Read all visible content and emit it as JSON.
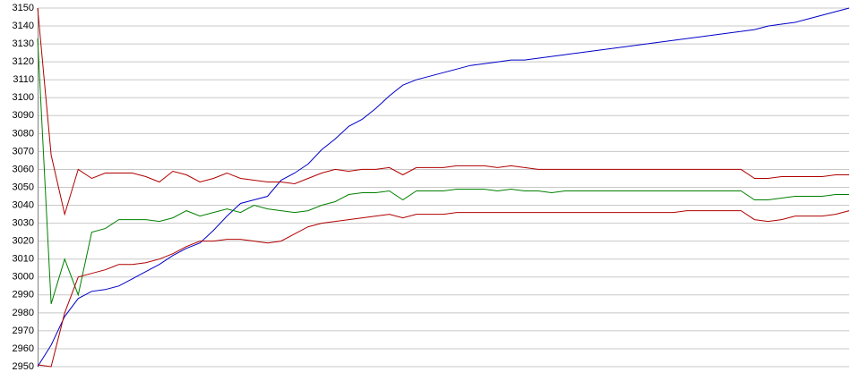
{
  "chart_data": {
    "type": "line",
    "ylim": [
      2950,
      3150
    ],
    "yticks": [
      2950,
      2960,
      2970,
      2980,
      2990,
      3000,
      3010,
      3020,
      3030,
      3040,
      3050,
      3060,
      3070,
      3080,
      3090,
      3100,
      3110,
      3120,
      3130,
      3140,
      3150
    ],
    "grid": true,
    "series": [
      {
        "color": "#0000c8",
        "values": [
          2950,
          2962,
          2978,
          2988,
          2992,
          2993,
          2995,
          2999,
          3003,
          3007,
          3012,
          3016,
          3019,
          3026,
          3034,
          3041,
          3043,
          3045,
          3054,
          3058,
          3063,
          3071,
          3077,
          3084,
          3088,
          3094,
          3101,
          3107,
          3110,
          3112,
          3114,
          3116,
          3118,
          3119,
          3120,
          3121,
          3121,
          3122,
          3123,
          3124,
          3125,
          3126,
          3127,
          3128,
          3129,
          3130,
          3131,
          3132,
          3133,
          3134,
          3135,
          3136,
          3137,
          3138,
          3140,
          3141,
          3142,
          3144,
          3146,
          3148,
          3150
        ]
      },
      {
        "color": "#b00000",
        "values": [
          3150,
          3068,
          3035,
          3060,
          3055,
          3058,
          3058,
          3058,
          3056,
          3053,
          3059,
          3057,
          3053,
          3055,
          3058,
          3055,
          3054,
          3053,
          3053,
          3052,
          3055,
          3058,
          3060,
          3059,
          3060,
          3060,
          3061,
          3057,
          3061,
          3061,
          3061,
          3062,
          3062,
          3062,
          3061,
          3062,
          3061,
          3060,
          3060,
          3060,
          3060,
          3060,
          3060,
          3060,
          3060,
          3060,
          3060,
          3060,
          3060,
          3060,
          3060,
          3060,
          3060,
          3055,
          3055,
          3056,
          3056,
          3056,
          3056,
          3057,
          3057
        ]
      },
      {
        "color": "#008000",
        "values": [
          3133,
          2985,
          3010,
          2990,
          3025,
          3027,
          3032,
          3032,
          3032,
          3031,
          3033,
          3037,
          3034,
          3036,
          3038,
          3036,
          3040,
          3038,
          3037,
          3036,
          3037,
          3040,
          3042,
          3046,
          3047,
          3047,
          3048,
          3043,
          3048,
          3048,
          3048,
          3049,
          3049,
          3049,
          3048,
          3049,
          3048,
          3048,
          3047,
          3048,
          3048,
          3048,
          3048,
          3048,
          3048,
          3048,
          3048,
          3048,
          3048,
          3048,
          3048,
          3048,
          3048,
          3043,
          3043,
          3044,
          3045,
          3045,
          3045,
          3046,
          3046
        ]
      },
      {
        "color": "#b00000",
        "values": [
          2951,
          2950,
          2980,
          3000,
          3002,
          3004,
          3007,
          3007,
          3008,
          3010,
          3013,
          3017,
          3020,
          3020,
          3021,
          3021,
          3020,
          3019,
          3020,
          3024,
          3028,
          3030,
          3031,
          3032,
          3033,
          3034,
          3035,
          3033,
          3035,
          3035,
          3035,
          3036,
          3036,
          3036,
          3036,
          3036,
          3036,
          3036,
          3036,
          3036,
          3036,
          3036,
          3036,
          3036,
          3036,
          3036,
          3036,
          3036,
          3037,
          3037,
          3037,
          3037,
          3037,
          3032,
          3031,
          3032,
          3034,
          3034,
          3034,
          3035,
          3037
        ]
      }
    ]
  }
}
